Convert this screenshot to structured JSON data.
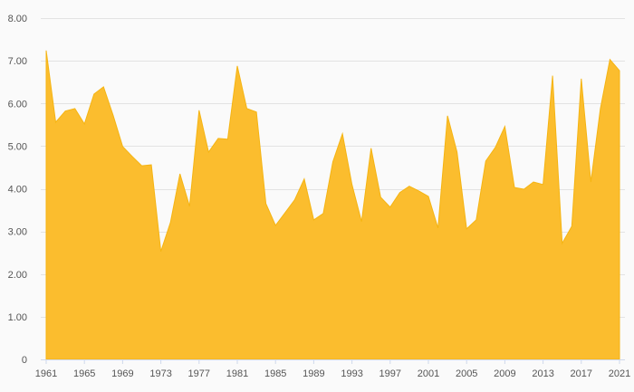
{
  "chart_data": {
    "type": "area",
    "title": "",
    "xlabel": "",
    "ylabel": "",
    "ylim": [
      0,
      8
    ],
    "grid": true,
    "y_ticks": [
      "0",
      "1.00",
      "2.00",
      "3.00",
      "4.00",
      "5.00",
      "6.00",
      "7.00",
      "8.00"
    ],
    "x_ticks": [
      "1961",
      "1965",
      "1969",
      "1973",
      "1977",
      "1981",
      "1985",
      "1989",
      "1993",
      "1997",
      "2001",
      "2005",
      "2009",
      "2013",
      "2017",
      "2021"
    ],
    "fill_color": "#fbbd2e",
    "line_color": "#f5b412",
    "x": [
      1961,
      1962,
      1963,
      1964,
      1965,
      1966,
      1967,
      1968,
      1969,
      1970,
      1971,
      1972,
      1973,
      1974,
      1975,
      1976,
      1977,
      1978,
      1979,
      1980,
      1981,
      1982,
      1983,
      1984,
      1985,
      1986,
      1987,
      1988,
      1989,
      1990,
      1991,
      1992,
      1993,
      1994,
      1995,
      1996,
      1997,
      1998,
      1999,
      2000,
      2001,
      2002,
      2003,
      2004,
      2005,
      2006,
      2007,
      2008,
      2009,
      2010,
      2011,
      2012,
      2013,
      2014,
      2015,
      2016,
      2017,
      2018,
      2019,
      2020,
      2021
    ],
    "values": [
      7.24,
      5.56,
      5.82,
      5.88,
      5.52,
      6.22,
      6.39,
      5.73,
      4.99,
      4.76,
      4.54,
      4.56,
      2.53,
      3.21,
      4.35,
      3.59,
      5.84,
      4.86,
      5.18,
      5.16,
      6.88,
      5.88,
      5.8,
      3.65,
      3.14,
      3.44,
      3.74,
      4.23,
      3.27,
      3.42,
      4.63,
      5.29,
      4.1,
      3.23,
      4.95,
      3.8,
      3.57,
      3.91,
      4.06,
      3.95,
      3.82,
      3.08,
      5.71,
      4.86,
      3.06,
      3.27,
      4.65,
      4.97,
      5.46,
      4.03,
      3.99,
      4.16,
      4.1,
      6.65,
      2.72,
      3.12,
      6.58,
      4.16,
      5.88,
      7.03,
      6.77
    ]
  }
}
